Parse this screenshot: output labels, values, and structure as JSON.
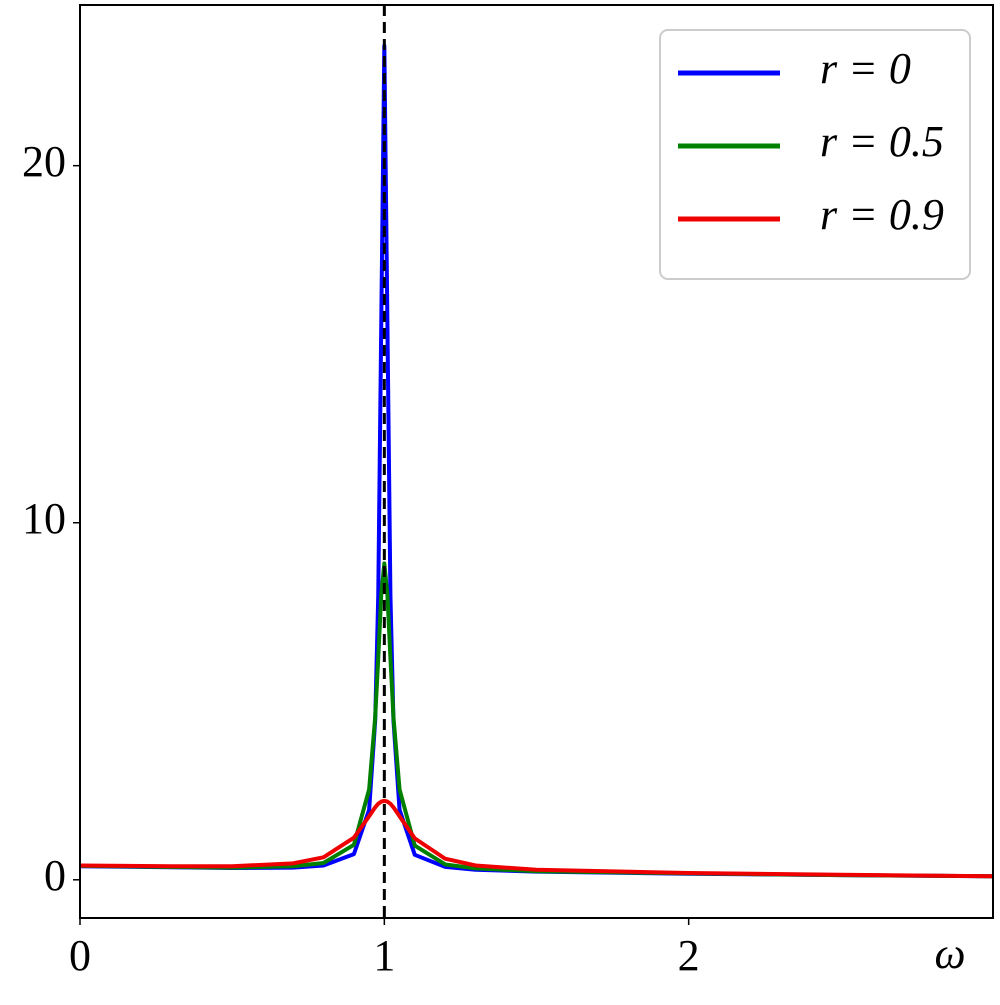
{
  "chart_data": {
    "type": "line",
    "x": [
      0,
      0.3,
      0.5,
      0.7,
      0.8,
      0.9,
      0.95,
      0.97,
      0.98,
      0.99,
      1,
      1.01,
      1.02,
      1.03,
      1.05,
      1.1,
      1.2,
      1.3,
      1.5,
      2,
      2.5,
      3
    ],
    "series": [
      {
        "name": "r = 0",
        "color": "#0000ff",
        "values": [
          0.38,
          0.35,
          0.33,
          0.34,
          0.4,
          0.72,
          1.96,
          4.46,
          7.96,
          15.66,
          23.36,
          15.66,
          7.96,
          4.46,
          1.96,
          0.7,
          0.36,
          0.28,
          0.23,
          0.17,
          0.13,
          0.1
        ]
      },
      {
        "name": "r = 0.5",
        "color": "#008000",
        "values": [
          0.39,
          0.36,
          0.34,
          0.38,
          0.47,
          0.98,
          2.53,
          4.56,
          6.21,
          8.0,
          8.86,
          8.0,
          6.21,
          4.56,
          2.53,
          0.96,
          0.43,
          0.32,
          0.24,
          0.18,
          0.13,
          0.1
        ]
      },
      {
        "name": "r = 0.9",
        "color": "#ee0000",
        "values": [
          0.4,
          0.38,
          0.38,
          0.46,
          0.63,
          1.18,
          1.78,
          2.03,
          2.13,
          2.19,
          2.21,
          2.19,
          2.13,
          2.03,
          1.78,
          1.16,
          0.59,
          0.4,
          0.28,
          0.19,
          0.14,
          0.1
        ]
      }
    ],
    "xlabel": "ω",
    "xlim": [
      0,
      3
    ],
    "ylim": [
      -1.07,
      24.5
    ],
    "xticks": [
      0,
      1,
      2
    ],
    "yticks": [
      0,
      10,
      20
    ],
    "vline": 1,
    "legend": "upper right"
  }
}
